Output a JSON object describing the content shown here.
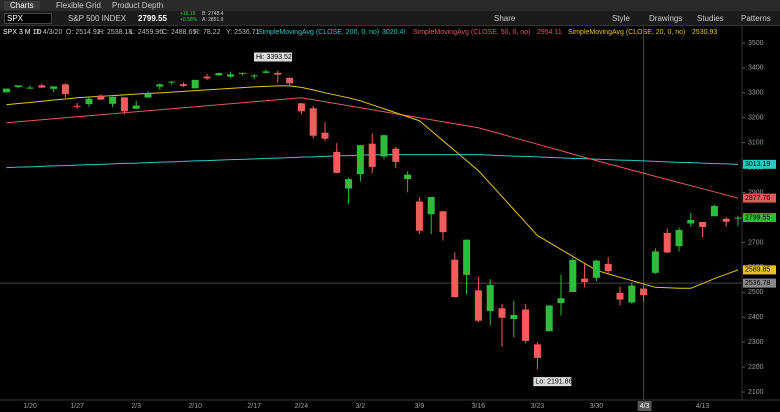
{
  "tabs": [
    "Charts",
    "Flexible Grid",
    "Product Depth"
  ],
  "symbol_bar": {
    "symbol": "SPX",
    "description": "S&P 500 INDEX",
    "last": "2799.55",
    "change": "+16.19",
    "change_pct": "+0.58%",
    "bid": "B: 2748.4",
    "ask": "A: 2851.9"
  },
  "toolbar": [
    "Share",
    "Style",
    "Drawings",
    "Studies",
    "Patterns"
  ],
  "chart_data": {
    "type": "candlestick",
    "title": "SPX 3 M 1D",
    "cursor": [
      "D: 4/3/20",
      "O: 2514.92",
      "H: 2538.18",
      "L: 2459.96",
      "C: 2488.65",
      "R: 78.22",
      "Y: 2536.71"
    ],
    "categories": [
      null,
      null,
      "1/20",
      null,
      null,
      null,
      "1/27",
      null,
      null,
      null,
      null,
      "2/3",
      null,
      null,
      null,
      null,
      "2/10",
      null,
      null,
      null,
      null,
      "2/17",
      null,
      null,
      null,
      "2/24",
      null,
      null,
      null,
      null,
      "3/2",
      null,
      null,
      null,
      null,
      "3/9",
      null,
      null,
      null,
      null,
      "3/16",
      null,
      null,
      null,
      null,
      "3/23",
      null,
      null,
      null,
      null,
      "3/30",
      null,
      null,
      null,
      null,
      null,
      null,
      null,
      null,
      "4/13",
      null,
      null,
      null
    ],
    "open": [
      3302,
      3323,
      3321,
      3330,
      3316,
      3334,
      3248,
      3255,
      3289,
      3256,
      3282,
      3236,
      3281,
      3325,
      3344,
      3335,
      3318,
      3365,
      3370,
      3365,
      3378,
      3369,
      3380,
      3380,
      3360,
      3258,
      3238,
      3140,
      3063,
      2916,
      2974,
      3096,
      3045,
      3076,
      2954,
      2864,
      2813,
      2825,
      2631,
      2570,
      2508,
      2425,
      2436,
      2393,
      2431,
      2291,
      2344,
      2457,
      2501,
      2555,
      2558,
      2614,
      2498,
      2459,
      2514.92,
      2578,
      2738,
      2685,
      2776,
      2782,
      2805,
      2795,
      2799
    ],
    "high": [
      3317,
      3330,
      3329,
      3337,
      3326,
      3338,
      3259,
      3286,
      3294,
      3285,
      3282,
      3268,
      3306,
      3338,
      3348,
      3342,
      3352,
      3375,
      3382,
      3385,
      3381,
      3375,
      3393.52,
      3389,
      3361,
      3259,
      3247,
      3183,
      3098,
      2960,
      3091,
      3137,
      3130,
      3083,
      2985,
      2882,
      2882,
      2825,
      2660,
      2711,
      2562,
      2553,
      2453,
      2466,
      2453,
      2300,
      2449,
      2571,
      2637,
      2615,
      2631,
      2641,
      2522,
      2540,
      2538.18,
      2676,
      2756,
      2760,
      2818,
      2782,
      2851,
      2801,
      2806
    ],
    "low": [
      3302,
      3318,
      3316,
      3320,
      3302,
      3280,
      3234,
      3243,
      3271,
      3242,
      3214,
      3236,
      3281,
      3313,
      3332,
      3323,
      3317,
      3352,
      3369,
      3360,
      3369,
      3355,
      3378,
      3341,
      3328,
      3214,
      3118,
      3108,
      2977,
      2855,
      2945,
      2977,
      3035,
      2999,
      2901,
      2734,
      2734,
      2707,
      2478,
      2493,
      2380,
      2367,
      2281,
      2319,
      2295,
      2191.86,
      2344,
      2407,
      2500,
      2520,
      2545,
      2571,
      2448,
      2455,
      2459.96,
      2574,
      2657,
      2664,
      2762,
      2721,
      2805,
      2762,
      2765
    ],
    "close": [
      3317,
      3330,
      3321,
      3321,
      3326,
      3295,
      3244,
      3276,
      3273,
      3284,
      3226,
      3249,
      3298,
      3334,
      3345,
      3328,
      3352,
      3358,
      3379,
      3374,
      3380,
      3370,
      3386,
      3373,
      3338,
      3226,
      3128,
      3116,
      2979,
      2954,
      3090,
      3003,
      3130,
      3023,
      2972,
      2747,
      2882,
      2741,
      2481,
      2711,
      2386,
      2529,
      2398,
      2409,
      2305,
      2237,
      2447,
      2476,
      2630,
      2541,
      2627,
      2585,
      2471,
      2527,
      2488.65,
      2664,
      2660,
      2750,
      2790,
      2762,
      2846,
      2783,
      2799.55
    ],
    "up_color": "#2ebd3a",
    "down_color": "#f25c5c",
    "series": [
      {
        "name": "SimpleMovingAvg (CLOSE, 200, 0, no)",
        "legend_value": "3020.4!",
        "color": "#2fc6c6",
        "values": [
          3000,
          3002,
          3003,
          3005,
          3007,
          3008,
          3010,
          3012,
          3013,
          3015,
          3017,
          3018,
          3020,
          3022,
          3023,
          3025,
          3027,
          3028,
          3030,
          3032,
          3033,
          3035,
          3037,
          3038,
          3040,
          3042,
          3043,
          3045,
          3047,
          3048,
          3050,
          3051,
          3052,
          3052,
          3052,
          3052,
          3052,
          3052,
          3052,
          3052,
          3052,
          3050,
          3048,
          3046,
          3045,
          3043,
          3041,
          3039,
          3037,
          3036,
          3034,
          3032,
          3030,
          3029,
          3027,
          3025,
          3023,
          3021,
          3020,
          3018,
          3016,
          3015,
          3013.19
        ]
      },
      {
        "name": "SimpleMovingAvg (CLOSE, 50, 0, no)",
        "legend_value": "2954.11",
        "color": "#e05a5a",
        "values": [
          3180,
          3184,
          3188,
          3192,
          3196,
          3200,
          3204,
          3208,
          3212,
          3216,
          3220,
          3224,
          3228,
          3232,
          3236,
          3240,
          3244,
          3248,
          3252,
          3256,
          3260,
          3264,
          3268,
          3272,
          3276,
          3280,
          3272,
          3264,
          3256,
          3248,
          3240,
          3232,
          3224,
          3216,
          3208,
          3200,
          3192,
          3184,
          3176,
          3168,
          3160,
          3147,
          3134,
          3120,
          3107,
          3094,
          3081,
          3068,
          3054,
          3041,
          3028,
          3015,
          3003,
          2990,
          2978,
          2965,
          2953,
          2940,
          2928,
          2915,
          2903,
          2890,
          2877.76
        ]
      },
      {
        "name": "SimpleMovingAvg (CLOSE, 20, 0, no)",
        "legend_value": "2530.93",
        "color": "#e8c41a",
        "values": [
          3252,
          3257,
          3261,
          3266,
          3271,
          3275,
          3280,
          3283,
          3286,
          3289,
          3292,
          3295,
          3298,
          3300,
          3303,
          3306,
          3309,
          3312,
          3315,
          3318,
          3321,
          3324,
          3326,
          3328,
          3328,
          3322,
          3312,
          3300,
          3290,
          3280,
          3268,
          3252,
          3236,
          3220,
          3204,
          3188,
          3148,
          3108,
          3068,
          3028,
          2988,
          2936,
          2884,
          2832,
          2780,
          2728,
          2700,
          2672,
          2644,
          2616,
          2588,
          2574,
          2560,
          2547,
          2533,
          2520,
          2518,
          2516,
          2516,
          2535,
          2555,
          2572,
          2589.85
        ]
      }
    ],
    "ylim": [
      2068,
      3568
    ],
    "yticks": [
      2100,
      2200,
      2300,
      2400,
      2500,
      2600,
      2700,
      2800,
      2900,
      3000,
      3100,
      3200,
      3300,
      3400,
      3500
    ],
    "annotations": [
      "Hi: 3393.52",
      "Lo: 2191.86"
    ],
    "crosshair": {
      "x_label": "4/3",
      "price": 2536.78
    }
  }
}
